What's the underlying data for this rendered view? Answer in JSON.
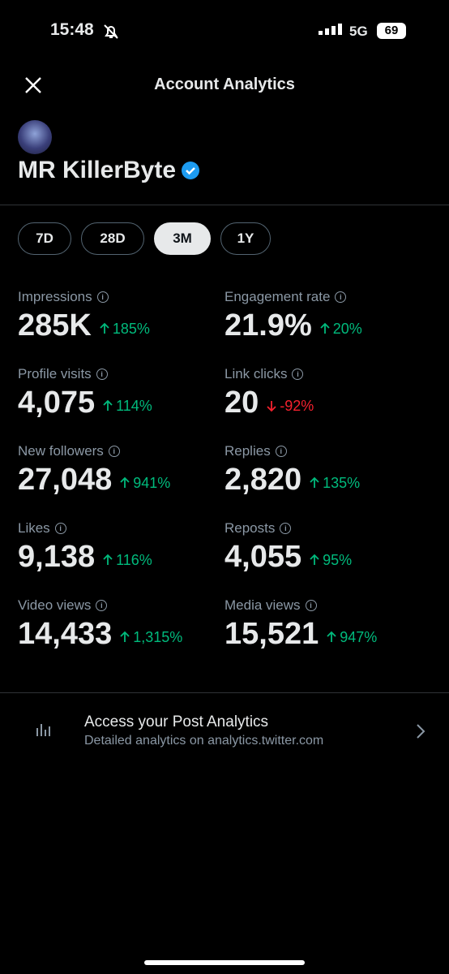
{
  "status_bar": {
    "time": "15:48",
    "network": "5G",
    "battery": "69"
  },
  "header": {
    "title": "Account Analytics"
  },
  "profile": {
    "name": "MR KillerByte"
  },
  "tabs": {
    "items": [
      "7D",
      "28D",
      "3M",
      "1Y"
    ],
    "selected": 2
  },
  "metrics": [
    {
      "label": "Impressions",
      "value": "285K",
      "change": "185%",
      "direction": "up"
    },
    {
      "label": "Engagement rate",
      "value": "21.9%",
      "change": "20%",
      "direction": "up"
    },
    {
      "label": "Profile visits",
      "value": "4,075",
      "change": "114%",
      "direction": "up"
    },
    {
      "label": "Link clicks",
      "value": "20",
      "change": "-92%",
      "direction": "down"
    },
    {
      "label": "New followers",
      "value": "27,048",
      "change": "941%",
      "direction": "up"
    },
    {
      "label": "Replies",
      "value": "2,820",
      "change": "135%",
      "direction": "up"
    },
    {
      "label": "Likes",
      "value": "9,138",
      "change": "116%",
      "direction": "up"
    },
    {
      "label": "Reposts",
      "value": "4,055",
      "change": "95%",
      "direction": "up"
    },
    {
      "label": "Video views",
      "value": "14,433",
      "change": "1,315%",
      "direction": "up"
    },
    {
      "label": "Media views",
      "value": "15,521",
      "change": "947%",
      "direction": "up"
    }
  ],
  "footer_link": {
    "title": "Access your Post Analytics",
    "subtitle": "Detailed analytics on analytics.twitter.com"
  }
}
